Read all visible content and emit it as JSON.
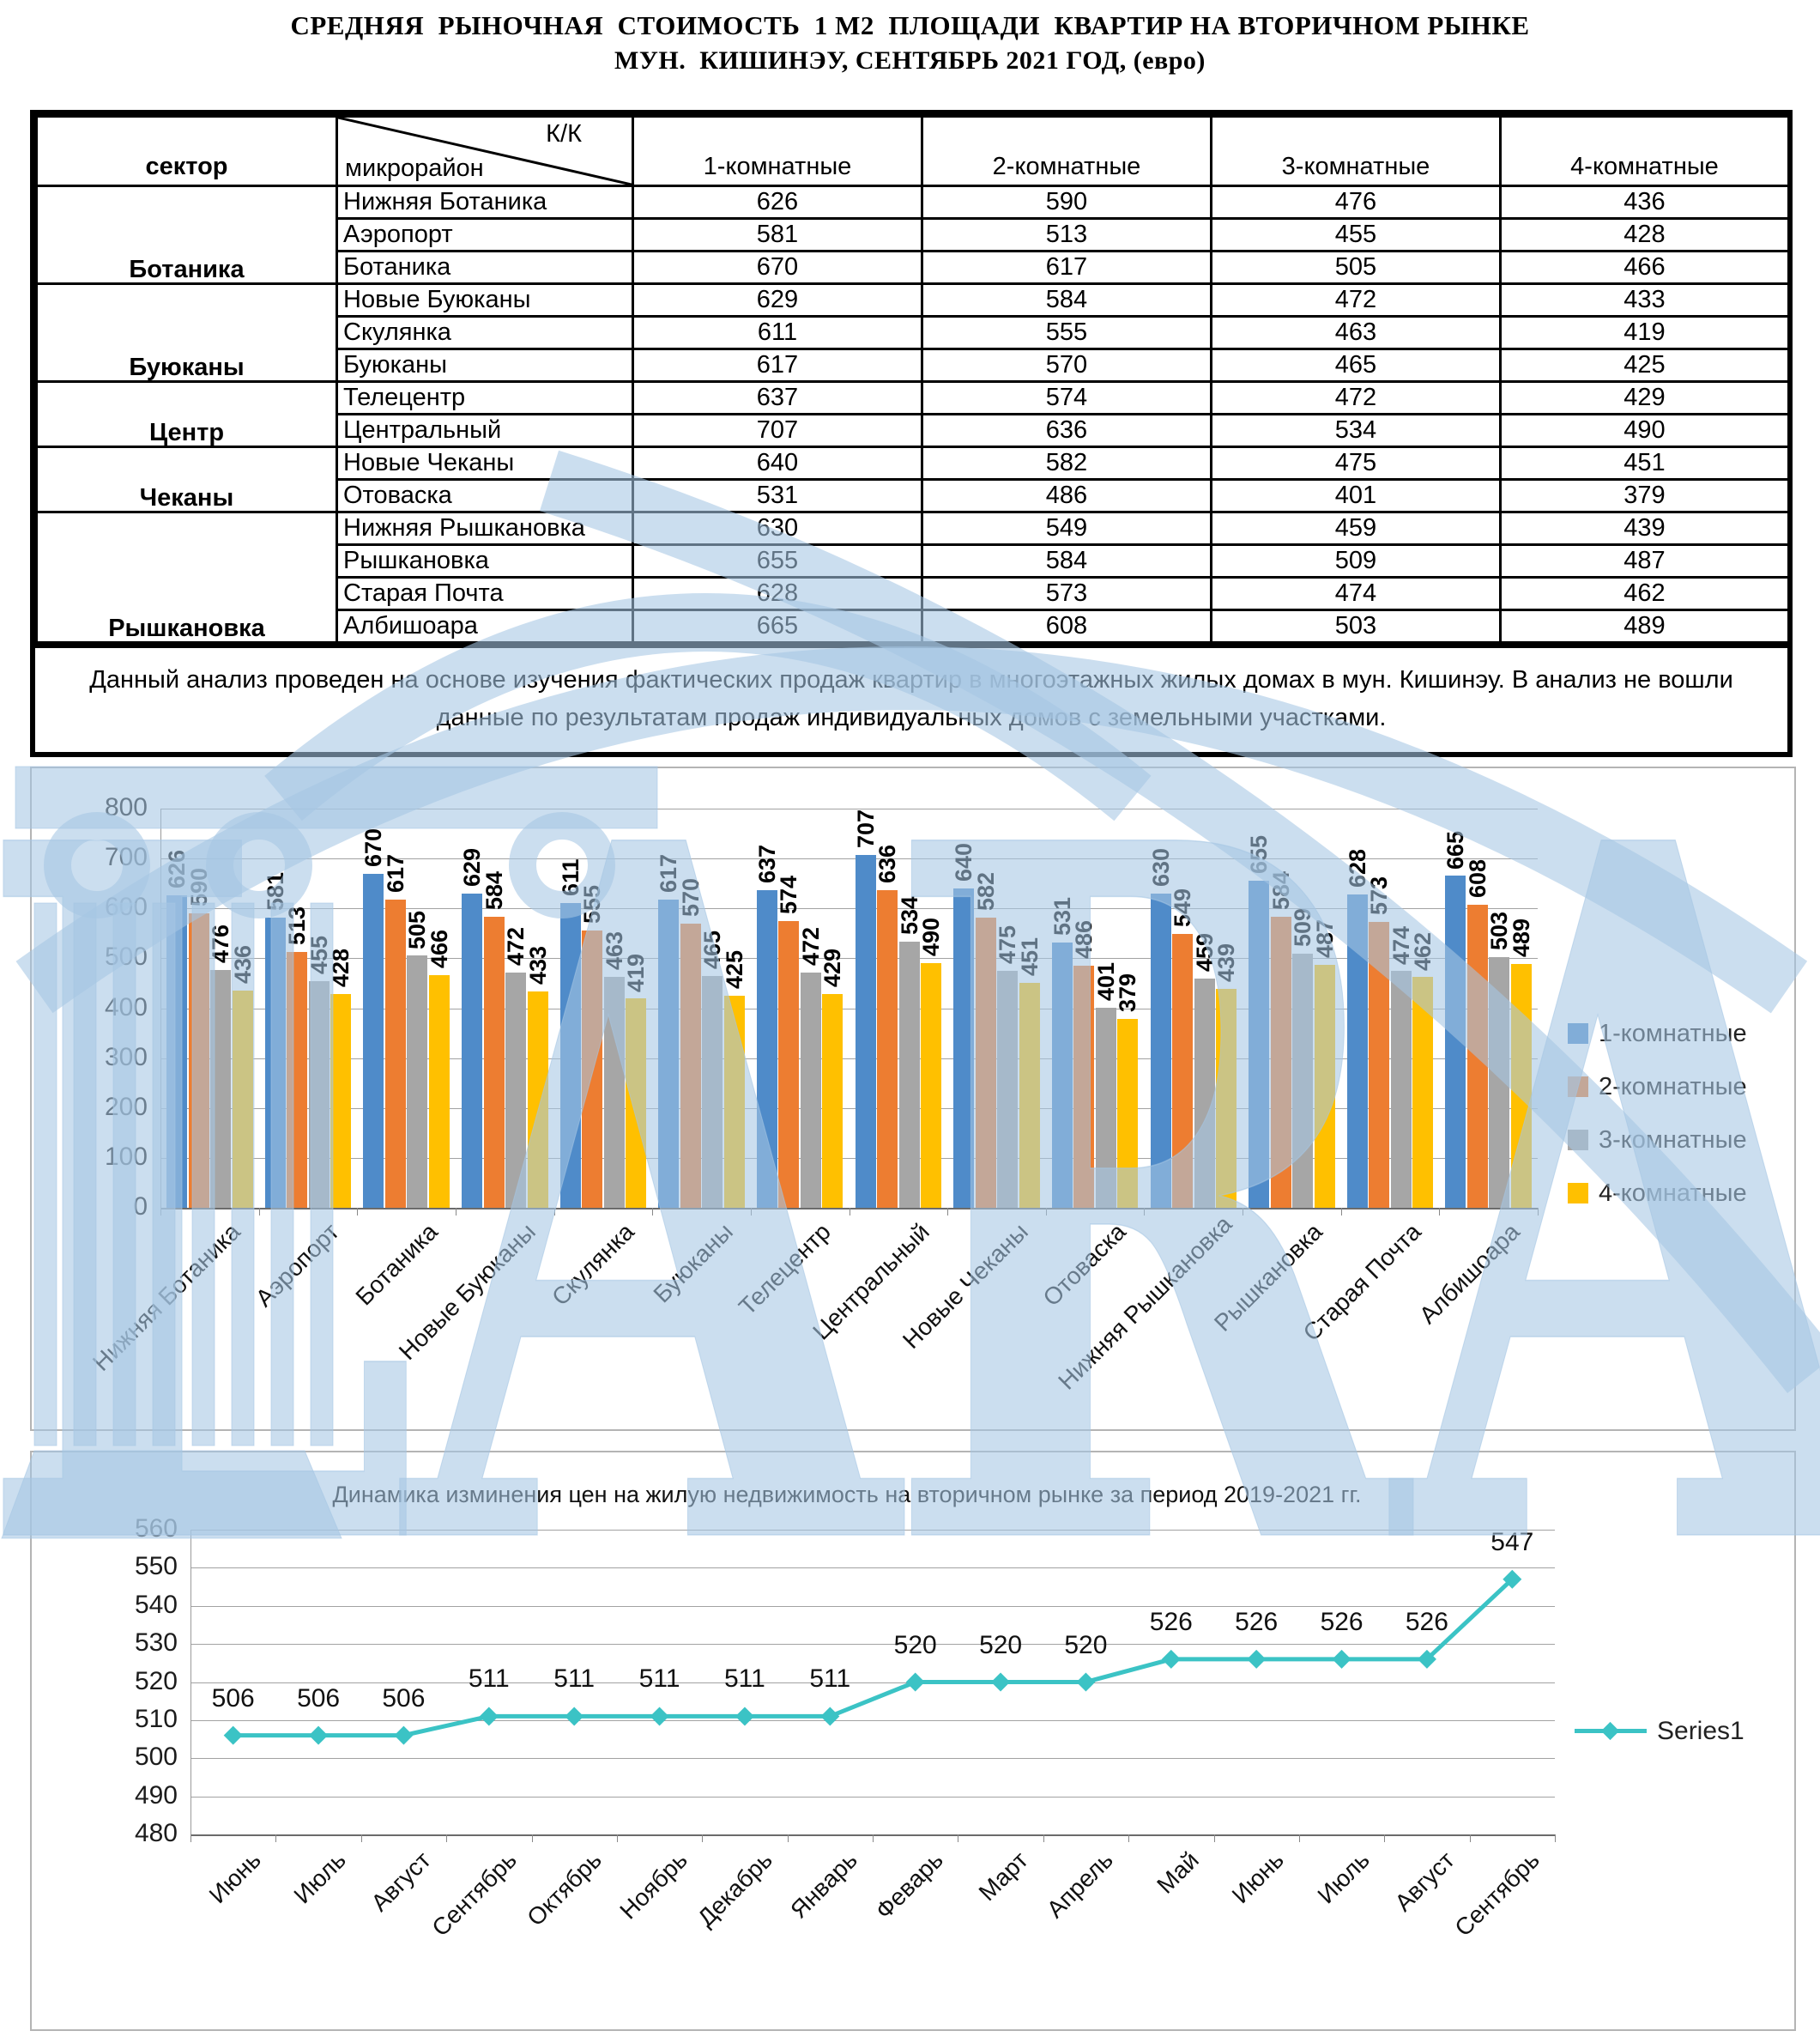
{
  "title": {
    "line1": "СРЕДНЯЯ  РЫНОЧНАЯ  СТОИМОСТЬ  1 М2  ПЛОЩАДИ  КВАРТИР НА ВТОРИЧНОМ РЫНКЕ",
    "line2": "МУН.  КИШИНЭУ, СЕНТЯБРЬ 2021 ГОД, (евро)"
  },
  "table": {
    "header": {
      "sector": "сектор",
      "district": "микрорайон",
      "kk": "К/К",
      "columns": [
        "1-комнатные",
        "2-комнатные",
        "3-комнатные",
        "4-комнатные"
      ]
    },
    "groups": [
      {
        "sector": "Ботаника",
        "rows": [
          {
            "district": "Нижняя Ботаника",
            "values": [
              626,
              590,
              476,
              436
            ]
          },
          {
            "district": "Аэропорт",
            "values": [
              581,
              513,
              455,
              428
            ]
          },
          {
            "district": "Ботаника",
            "values": [
              670,
              617,
              505,
              466
            ]
          }
        ]
      },
      {
        "sector": "Буюканы",
        "rows": [
          {
            "district": "Новые Буюканы",
            "values": [
              629,
              584,
              472,
              433
            ]
          },
          {
            "district": "Скулянка",
            "values": [
              611,
              555,
              463,
              419
            ]
          },
          {
            "district": "Буюканы",
            "values": [
              617,
              570,
              465,
              425
            ]
          }
        ]
      },
      {
        "sector": "Центр",
        "rows": [
          {
            "district": "Телецентр",
            "values": [
              637,
              574,
              472,
              429
            ]
          },
          {
            "district": "Центральный",
            "values": [
              707,
              636,
              534,
              490
            ]
          }
        ]
      },
      {
        "sector": "Чеканы",
        "rows": [
          {
            "district": "Новые Чеканы",
            "values": [
              640,
              582,
              475,
              451
            ]
          },
          {
            "district": "Отоваска",
            "values": [
              531,
              486,
              401,
              379
            ]
          }
        ]
      },
      {
        "sector": "Рышкановка",
        "rows": [
          {
            "district": "Нижняя Рышкановка",
            "values": [
              630,
              549,
              459,
              439
            ]
          },
          {
            "district": "Рышкановка",
            "values": [
              655,
              584,
              509,
              487
            ]
          },
          {
            "district": "Старая Почта",
            "values": [
              628,
              573,
              474,
              462
            ]
          },
          {
            "district": "Албишоара",
            "values": [
              665,
              608,
              503,
              489
            ]
          }
        ]
      }
    ]
  },
  "footnote": {
    "text": "Данный анализ проведен на основе изучения фактических продаж квартир в многоэтажных жилых домах в мун. Кишинэу. В анализ не вошли\nданные по результатам  продаж индивидуальных домов с земельными участками."
  },
  "chart_data": [
    {
      "type": "bar",
      "title": "",
      "categories": [
        "Нижняя Ботаника",
        "Аэропорт",
        "Ботаника",
        "Новые Буюканы",
        "Скулянка",
        "Буюканы",
        "Телецентр",
        "Центральный",
        "Новые Чеканы",
        "Отоваска",
        "Нижняя Рышкановка",
        "Рышкановка",
        "Старая Почта",
        "Албишоара"
      ],
      "series": [
        {
          "name": "1-комнатные",
          "color": "#4f8bc9",
          "values": [
            626,
            581,
            670,
            629,
            611,
            617,
            637,
            707,
            640,
            531,
            630,
            655,
            628,
            665
          ]
        },
        {
          "name": "2-комнатные",
          "color": "#ed7d31",
          "values": [
            590,
            513,
            617,
            584,
            555,
            570,
            574,
            636,
            582,
            486,
            549,
            584,
            573,
            608
          ]
        },
        {
          "name": "3-комнатные",
          "color": "#a6a6a6",
          "values": [
            476,
            455,
            505,
            472,
            463,
            465,
            472,
            534,
            475,
            401,
            459,
            509,
            474,
            503
          ]
        },
        {
          "name": "4-комнатные",
          "color": "#ffc000",
          "values": [
            436,
            428,
            466,
            433,
            419,
            425,
            429,
            490,
            451,
            379,
            439,
            487,
            462,
            489
          ]
        }
      ],
      "ylim": [
        0,
        800
      ],
      "ytick_step": 100,
      "grid": true,
      "data_labels": true,
      "legend_position": "right"
    },
    {
      "type": "line",
      "title": "Динамика изминения цен на жилую недвижимость на вторичном рынке за период 2019-2021 гг.",
      "categories": [
        "Июнь",
        "Июль",
        "Август",
        "Сентябрь",
        "Октябрь",
        "Ноябрь",
        "Декабрь",
        "Январь",
        "Феварь",
        "Март",
        "Апрель",
        "Май",
        "Июнь",
        "Июль",
        "Август",
        "Сентябрь"
      ],
      "series": [
        {
          "name": "Series1",
          "color": "#3bc3c5",
          "values": [
            506,
            506,
            506,
            511,
            511,
            511,
            511,
            511,
            520,
            520,
            520,
            526,
            526,
            526,
            526,
            547
          ]
        }
      ],
      "ylim": [
        480,
        560
      ],
      "ytick_step": 10,
      "grid": true,
      "data_labels": true,
      "legend_position": "right"
    }
  ],
  "watermark": {
    "text": "LARA",
    "color": "#a5c6e3"
  }
}
